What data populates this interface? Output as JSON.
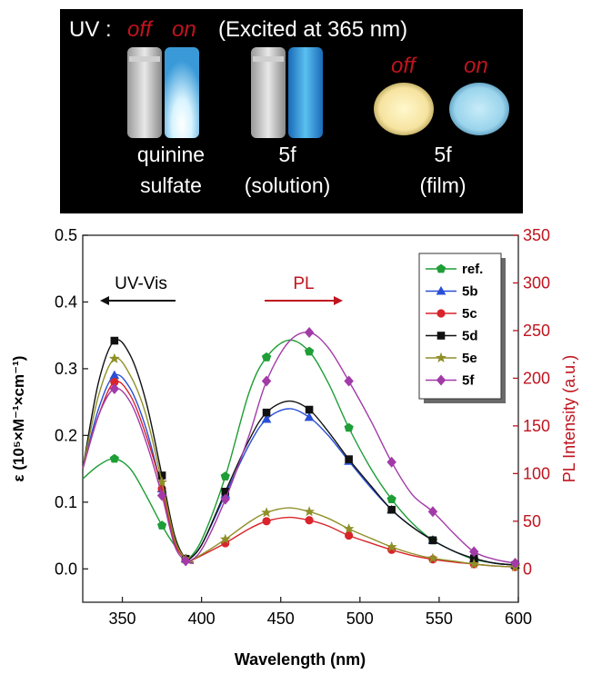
{
  "photo_panel": {
    "uv_label": "UV :",
    "off_label": "off",
    "on_label": "on",
    "excitation_note": "(Excited at 365 nm)",
    "samples": [
      {
        "line1": "quinine",
        "line2": "sulfate"
      },
      {
        "line1": "5f",
        "line2": "(solution)"
      },
      {
        "line1": "5f",
        "line2": "(film)"
      }
    ],
    "film_off_label": "off",
    "film_on_label": "on"
  },
  "colors": {
    "ref": "#1e9e36",
    "5b": "#2a4fd6",
    "5c": "#d8242a",
    "5d": "#111111",
    "5e": "#8f8f28",
    "5f": "#a23aa8",
    "right_axis": "#c0141e"
  },
  "chart_data": {
    "type": "line",
    "xlabel": "Wavelength (nm)",
    "ylabel_left": "ε (10⁵×M⁻¹×cm⁻¹)",
    "ylabel_right": "PL Intensity (a.u.)",
    "xlim": [
      325,
      600
    ],
    "ylim_left": [
      -0.05,
      0.5
    ],
    "ylim_right": [
      -35,
      350
    ],
    "x_ticks": [
      350,
      400,
      450,
      500,
      550,
      600
    ],
    "y_left_ticks": [
      "0.0",
      "0.1",
      "0.2",
      "0.3",
      "0.4",
      "0.5"
    ],
    "y_right_ticks": [
      "0",
      "50",
      "100",
      "150",
      "200",
      "250",
      "300",
      "350"
    ],
    "annotations": {
      "uvvis": "UV-Vis",
      "pl": "PL"
    },
    "legend_position": "top-right",
    "grid": false,
    "uvvis_x": [
      325,
      335,
      345,
      355,
      365,
      375,
      383,
      390,
      395
    ],
    "pl_x": [
      390,
      400,
      415,
      430,
      441,
      455,
      468,
      480,
      493,
      507,
      520,
      533,
      546,
      560,
      572,
      585,
      598
    ],
    "series": [
      {
        "name": "ref.",
        "key": "ref",
        "uvvis": [
          0.135,
          0.155,
          0.165,
          0.15,
          0.11,
          0.065,
          0.035,
          0.015,
          0.01
        ],
        "pl": [
          7,
          30,
          97,
          185,
          222,
          240,
          228,
          195,
          148,
          105,
          73,
          48,
          30,
          18,
          10,
          6,
          4
        ]
      },
      {
        "name": "5b",
        "key": "5b",
        "uvvis": [
          0.15,
          0.24,
          0.29,
          0.27,
          0.21,
          0.12,
          0.04,
          0.015,
          0.01
        ],
        "pl": [
          7,
          25,
          78,
          130,
          157,
          168,
          159,
          140,
          113,
          85,
          62,
          44,
          30,
          18,
          11,
          6,
          4
        ]
      },
      {
        "name": "5c",
        "key": "5c",
        "uvvis": [
          0.15,
          0.23,
          0.28,
          0.26,
          0.2,
          0.12,
          0.04,
          0.015,
          0.01
        ],
        "pl": [
          6,
          14,
          27,
          42,
          50,
          54,
          51,
          45,
          35,
          27,
          20,
          14,
          10,
          7,
          5,
          3,
          2
        ]
      },
      {
        "name": "5d",
        "key": "5d",
        "uvvis": [
          0.15,
          0.28,
          0.342,
          0.32,
          0.25,
          0.14,
          0.05,
          0.015,
          0.01
        ],
        "pl": [
          7,
          25,
          81,
          135,
          164,
          176,
          167,
          144,
          115,
          87,
          62,
          44,
          30,
          18,
          11,
          6,
          4
        ]
      },
      {
        "name": "5e",
        "key": "5e",
        "uvvis": [
          0.15,
          0.26,
          0.315,
          0.29,
          0.23,
          0.13,
          0.045,
          0.015,
          0.01
        ],
        "pl": [
          6,
          15,
          31,
          49,
          59,
          64,
          60,
          53,
          42,
          32,
          23,
          16,
          11,
          8,
          5,
          3,
          2
        ]
      },
      {
        "name": "5f",
        "key": "5f",
        "uvvis": [
          0.15,
          0.23,
          0.27,
          0.25,
          0.19,
          0.11,
          0.035,
          0.012,
          0.008
        ],
        "pl": [
          6,
          20,
          73,
          140,
          197,
          238,
          248,
          232,
          197,
          155,
          112,
          78,
          60,
          36,
          18,
          10,
          6
        ]
      }
    ]
  }
}
